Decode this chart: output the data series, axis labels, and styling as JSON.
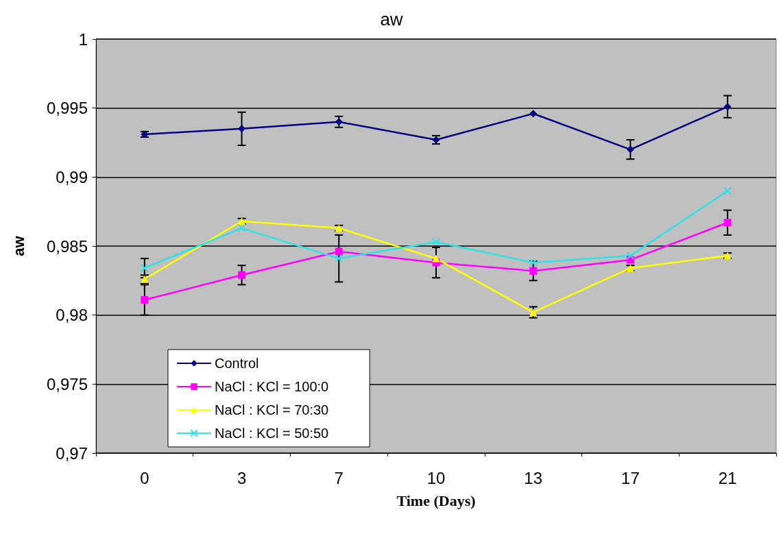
{
  "chart_data": {
    "type": "line",
    "title": "aw",
    "xlabel": "Time (Days)",
    "ylabel": "aw",
    "categories": [
      "0",
      "3",
      "7",
      "10",
      "13",
      "17",
      "21"
    ],
    "ylim": [
      0.97,
      1
    ],
    "yticks": [
      {
        "value": 0.97,
        "label": "0,97"
      },
      {
        "value": 0.975,
        "label": "0,975"
      },
      {
        "value": 0.98,
        "label": "0,98"
      },
      {
        "value": 0.985,
        "label": "0,985"
      },
      {
        "value": 0.99,
        "label": "0,99"
      },
      {
        "value": 0.995,
        "label": "0,995"
      },
      {
        "value": 1,
        "label": "1"
      }
    ],
    "grid": "y",
    "legend": "bottom left",
    "series": [
      {
        "name": "Control",
        "color": "#000080",
        "marker": "diamond",
        "values": [
          0.9931,
          0.9935,
          0.994,
          0.9927,
          0.9946,
          0.992,
          0.9951
        ],
        "errors": [
          0.0002,
          0.0012,
          0.0004,
          0.0003,
          null,
          0.0007,
          0.0008
        ]
      },
      {
        "name": "NaCl : KCl = 100:0",
        "color": "#ff00ff",
        "marker": "square",
        "values": [
          0.9811,
          0.9829,
          0.9846,
          0.9838,
          0.9832,
          0.984,
          0.9867
        ],
        "errors": [
          0.0011,
          0.0007,
          null,
          0.0011,
          0.0007,
          null,
          0.0009
        ]
      },
      {
        "name": "NaCl : KCl = 70:30",
        "color": "#ffff00",
        "marker": "triangle",
        "values": [
          0.9826,
          0.9868,
          0.9863,
          0.9841,
          0.9802,
          0.9834,
          0.9843
        ],
        "errors": [
          0.0003,
          0.0002,
          0.0002,
          null,
          0.0004,
          0.0002,
          0.0002
        ]
      },
      {
        "name": "NaCl : KCl = 50:50",
        "color": "#33e0e8",
        "marker": "cross",
        "values": [
          0.9834,
          0.9863,
          0.9841,
          0.9853,
          0.9838,
          0.9843,
          0.989
        ],
        "errors": [
          0.0007,
          null,
          0.0017,
          null,
          null,
          null,
          null
        ]
      }
    ]
  }
}
